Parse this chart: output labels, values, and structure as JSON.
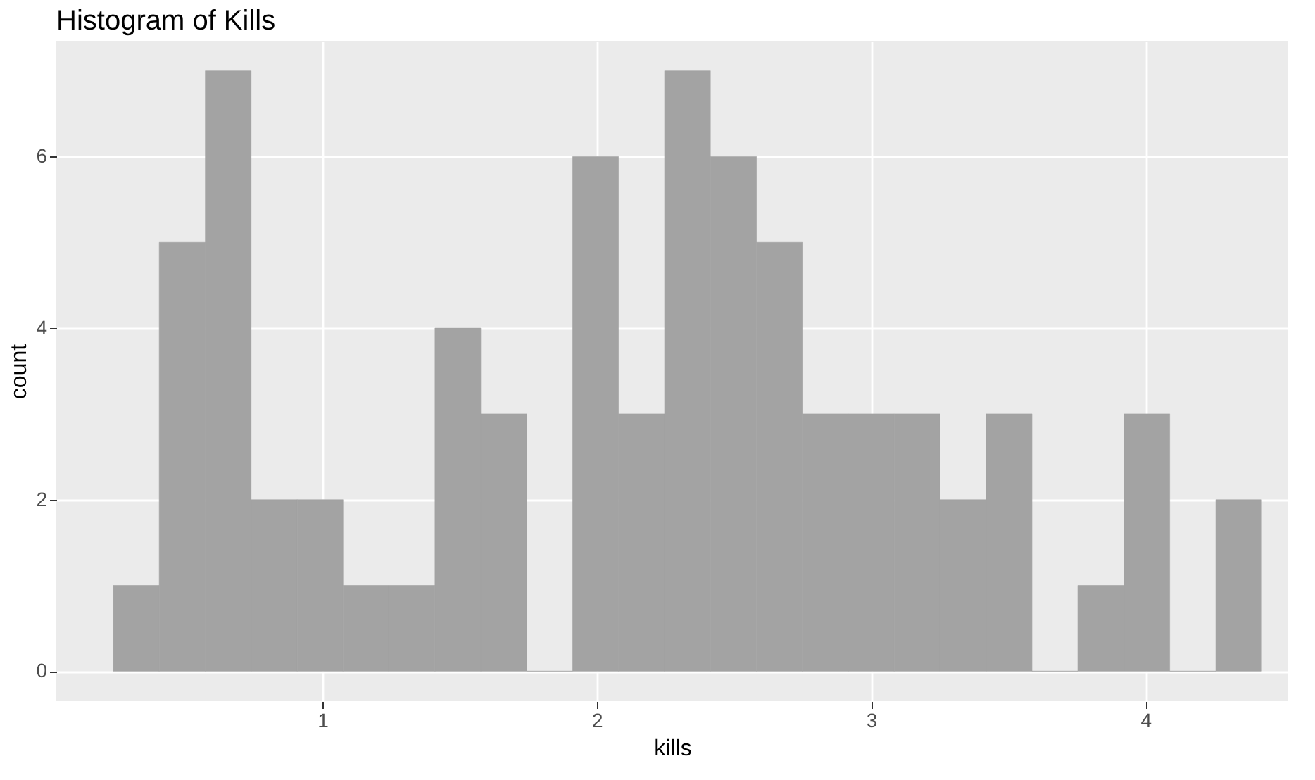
{
  "chart_data": {
    "type": "histogram",
    "title": "Histogram of Kills",
    "xlabel": "kills",
    "ylabel": "count",
    "bins": [
      0.238,
      0.405,
      0.573,
      0.74,
      0.908,
      1.075,
      1.242,
      1.41,
      1.577,
      1.745,
      1.912,
      2.079,
      2.247,
      2.414,
      2.582,
      2.749,
      2.916,
      3.084,
      3.251,
      3.419,
      3.586,
      3.753,
      3.921,
      4.088,
      4.256,
      4.423
    ],
    "values": [
      1,
      5,
      7,
      2,
      2,
      1,
      1,
      4,
      3,
      0,
      6,
      3,
      7,
      6,
      5,
      3,
      3,
      3,
      2,
      3,
      0,
      1,
      3,
      0,
      2
    ],
    "color": "#a3a3a3",
    "xlim": [
      0.03,
      4.52
    ],
    "ylim": [
      -0.35,
      7.35
    ],
    "xticks": [
      1,
      2,
      3,
      4
    ],
    "yticks": [
      0,
      2,
      4,
      6
    ],
    "grid": true
  }
}
